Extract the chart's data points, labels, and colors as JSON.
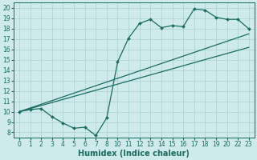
{
  "xlabel": "Humidex (Indice chaleur)",
  "bg_color": "#ceeaea",
  "line_color": "#1a6b60",
  "grid_color": "#aacfcf",
  "x_labels": [
    "0",
    "1",
    "2",
    "3",
    "4",
    "5",
    "6",
    "7",
    "8",
    "10",
    "11",
    "12",
    "13",
    "14",
    "15",
    "16",
    "17",
    "18",
    "19",
    "20",
    "22",
    "23"
  ],
  "y_ticks": [
    8,
    9,
    10,
    11,
    12,
    13,
    14,
    15,
    16,
    17,
    18,
    19,
    20
  ],
  "xlim": [
    -0.5,
    21.5
  ],
  "ylim": [
    7.5,
    20.5
  ],
  "jagged_idx": [
    0,
    1,
    2,
    3,
    4,
    5,
    6,
    7,
    8,
    9,
    10,
    11,
    12,
    13,
    14,
    15,
    16,
    17,
    18,
    19,
    20,
    21
  ],
  "jagged_y": [
    10.0,
    10.2,
    10.3,
    9.5,
    8.9,
    8.4,
    8.5,
    7.7,
    9.4,
    14.8,
    17.1,
    18.5,
    18.9,
    18.1,
    18.3,
    18.2,
    19.9,
    19.8,
    19.1,
    18.9,
    18.9,
    18.0
  ],
  "line1_x": [
    0,
    21
  ],
  "line1_y": [
    10.0,
    17.5
  ],
  "line2_x": [
    0,
    21
  ],
  "line2_y": [
    10.0,
    16.2
  ],
  "tick_fontsize": 5.5,
  "xlabel_fontsize": 7.0
}
